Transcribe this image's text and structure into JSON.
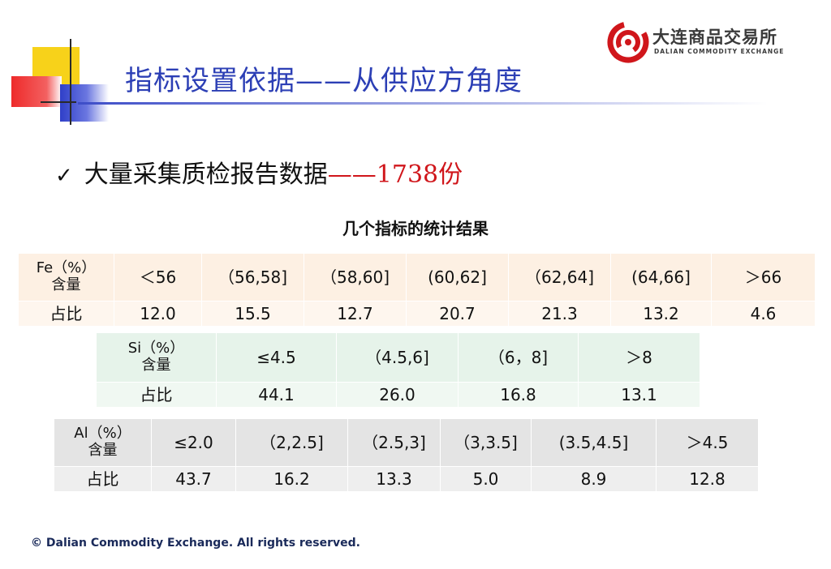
{
  "title": "指标设置依据——从供应方角度",
  "logo": {
    "name_cn": "大连商品交易所",
    "name_en": "DALIAN   COMMODITY   EXCHANGE",
    "color": "#d0161b"
  },
  "bullet": {
    "icon": "check-icon",
    "text": "大量采集质检报告数据",
    "highlight": "——1738份"
  },
  "subtitle": "几个指标的统计结果",
  "tables": {
    "fe": {
      "header_label_top": "Fe（%）",
      "header_label_bottom": "含量",
      "row_label": "占比",
      "ranges": [
        "＜56",
        "（56,58]",
        "（58,60]",
        "(60,62]",
        "（62,64]",
        "(64,66]",
        "＞66"
      ],
      "values": [
        "12.0",
        "15.5",
        "12.7",
        "20.7",
        "21.3",
        "13.2",
        "4.6"
      ]
    },
    "si": {
      "header_label_top": "Si（%）",
      "header_label_bottom": "含量",
      "row_label": "占比",
      "ranges": [
        "≤4.5",
        "（4.5,6]",
        "（6，8]",
        "＞8"
      ],
      "values": [
        "44.1",
        "26.0",
        "16.8",
        "13.1"
      ]
    },
    "al": {
      "header_label_top": "Al（%）",
      "header_label_bottom": "含量",
      "row_label": "占比",
      "ranges": [
        "≤2.0",
        "（2,2.5]",
        "（2.5,3]",
        "（3,3.5]",
        "(3.5,4.5]",
        "＞4.5"
      ],
      "values": [
        "43.7",
        "16.2",
        "13.3",
        "5.0",
        "8.9",
        "12.8"
      ]
    }
  },
  "copyright": "© Dalian Commodity Exchange. All rights reserved."
}
